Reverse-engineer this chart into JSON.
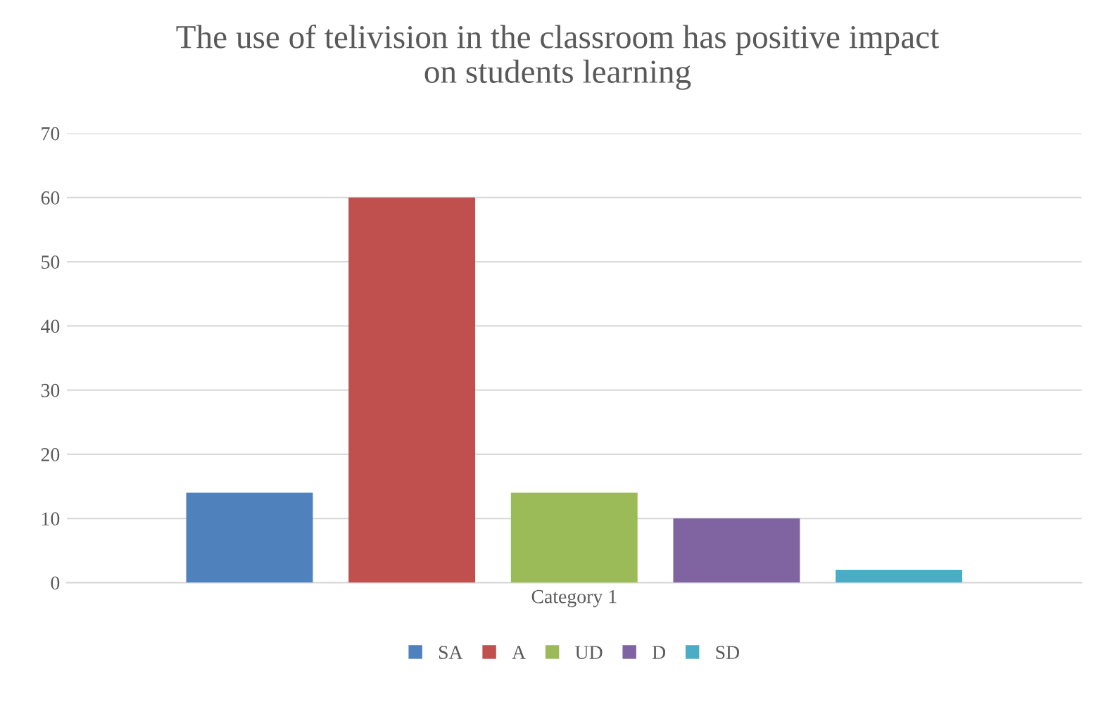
{
  "chart_data": {
    "type": "bar",
    "title": "The use of telivision in the classroom has positive impact\non students learning",
    "categories": [
      "Category 1"
    ],
    "series": [
      {
        "name": "SA",
        "color": "#4f81bd",
        "values": [
          14
        ]
      },
      {
        "name": "A",
        "color": "#c0504d",
        "values": [
          60
        ]
      },
      {
        "name": "UD",
        "color": "#9bbb59",
        "values": [
          14
        ]
      },
      {
        "name": "D",
        "color": "#8064a2",
        "values": [
          10
        ]
      },
      {
        "name": "SD",
        "color": "#4bacc6",
        "values": [
          2
        ]
      }
    ],
    "ylim": [
      0,
      70
    ],
    "yticks": [
      0,
      10,
      20,
      30,
      40,
      50,
      60,
      70
    ],
    "grid": "y",
    "legend": "bottom"
  }
}
